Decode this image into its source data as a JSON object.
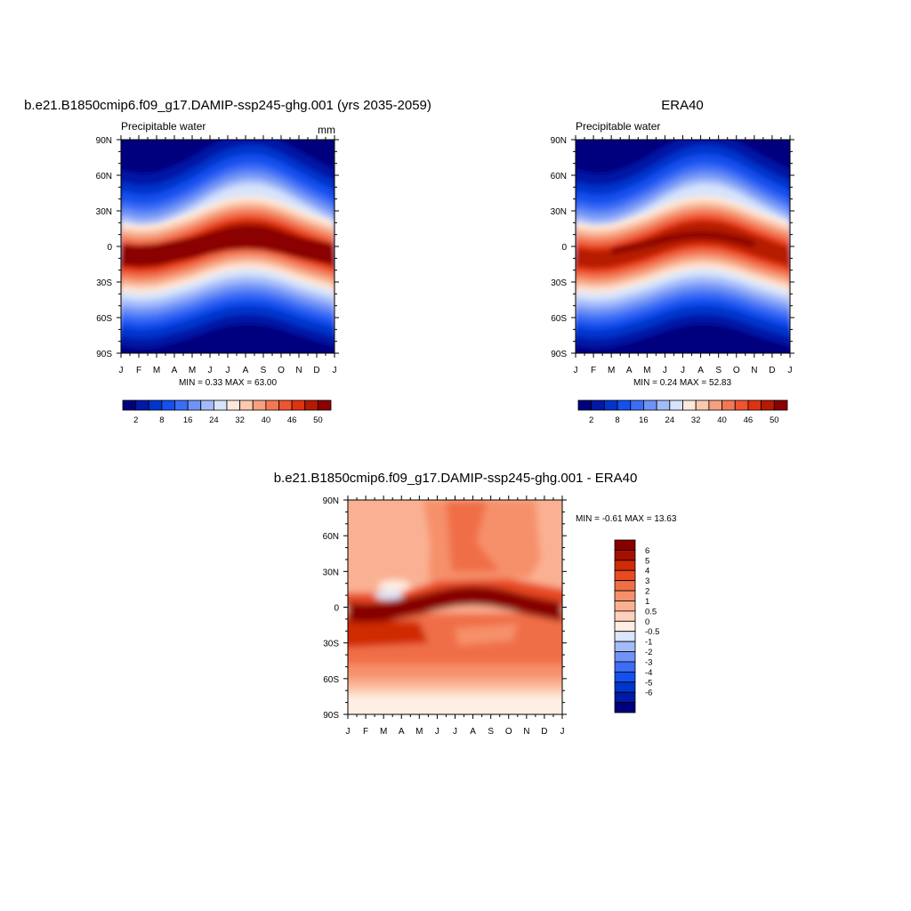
{
  "palettes": {
    "abs": [
      "#00007f",
      "#0019a6",
      "#0035cc",
      "#1450ee",
      "#3c6ef5",
      "#6f93f7",
      "#a4bbf9",
      "#d6e3fb",
      "#fde9dc",
      "#fbc9ae",
      "#f6a07f",
      "#f27855",
      "#ef5430",
      "#de3211",
      "#b51b03",
      "#8b0000"
    ],
    "diff": [
      "#00007f",
      "#0019a6",
      "#0035cc",
      "#1450ee",
      "#3c6ef5",
      "#6f93f7",
      "#a4bbf9",
      "#d9e6fb",
      "#ffeee4",
      "#fdd1bb",
      "#fab193",
      "#f6906b",
      "#f06e46",
      "#e84a22",
      "#d02a06",
      "#a60f00",
      "#860000"
    ]
  },
  "panels": [
    {
      "title": "b.e21.B1850cmip6.f09_g17.DAMIP-ssp245-ghg.001 (yrs 2035-2059)",
      "left_label": "Precipitable water",
      "right_label": "mm",
      "stats": "MIN =   0.33 MAX =  63.00",
      "colorbar_labels": [
        "2",
        "8",
        "16",
        "24",
        "32",
        "40",
        "46",
        "50"
      ]
    },
    {
      "title": "ERA40",
      "left_label": "Precipitable water",
      "right_label": "",
      "stats": "MIN =   0.24 MAX =  52.83",
      "colorbar_labels": [
        "2",
        "8",
        "16",
        "24",
        "32",
        "40",
        "46",
        "50"
      ]
    },
    {
      "title": "b.e21.B1850cmip6.f09_g17.DAMIP-ssp245-ghg.001 - ERA40",
      "left_label": "",
      "right_label": "",
      "stats": "MIN =  -0.61 MAX =  13.63",
      "colorbar_labels": [
        "6",
        "5",
        "4",
        "3",
        "2",
        "1",
        "0.5",
        "0",
        "-0.5",
        "-1",
        "-2",
        "-3",
        "-4",
        "-5",
        "-6"
      ]
    }
  ],
  "axes": {
    "x_tick_labels": [
      "J",
      "F",
      "M",
      "A",
      "M",
      "J",
      "J",
      "A",
      "S",
      "O",
      "N",
      "D",
      "J"
    ],
    "y_tick_labels": [
      "90N",
      "60N",
      "30N",
      "0",
      "30S",
      "60S",
      "90S"
    ]
  },
  "chart_data": [
    {
      "type": "heatmap",
      "title": "b.e21.B1850cmip6.f09_g17.DAMIP-ssp245-ghg.001 (yrs 2035-2059)",
      "variable": "Precipitable water",
      "units": "mm",
      "x": [
        "J",
        "F",
        "M",
        "A",
        "M",
        "J",
        "J",
        "A",
        "S",
        "O",
        "N",
        "D",
        "J"
      ],
      "y": [
        "90N",
        "60N",
        "30N",
        "0",
        "30S",
        "60S",
        "90S"
      ],
      "min": 0.33,
      "max": 63.0,
      "levels": [
        2,
        4,
        6,
        8,
        12,
        16,
        20,
        24,
        28,
        32,
        36,
        40,
        44,
        46,
        48,
        50
      ],
      "itcz_lat_by_month": [
        -6,
        -7,
        -6,
        -3,
        0,
        4,
        7,
        8,
        7,
        4,
        0,
        -3,
        -6
      ],
      "peak_value_approx": 58
    },
    {
      "type": "heatmap",
      "title": "ERA40",
      "variable": "Precipitable water",
      "x": [
        "J",
        "F",
        "M",
        "A",
        "M",
        "J",
        "J",
        "A",
        "S",
        "O",
        "N",
        "D",
        "J"
      ],
      "y": [
        "90N",
        "60N",
        "30N",
        "0",
        "30S",
        "60S",
        "90S"
      ],
      "min": 0.24,
      "max": 52.83,
      "levels": [
        2,
        4,
        6,
        8,
        12,
        16,
        20,
        24,
        28,
        32,
        36,
        40,
        44,
        46,
        48,
        50
      ],
      "itcz_lat_by_month": [
        -6,
        -7,
        -6,
        -3,
        0,
        4,
        7,
        8,
        7,
        4,
        0,
        -3,
        -6
      ],
      "peak_value_approx": 50
    },
    {
      "type": "heatmap",
      "title": "b.e21.B1850cmip6.f09_g17.DAMIP-ssp245-ghg.001 - ERA40",
      "x": [
        "J",
        "F",
        "M",
        "A",
        "M",
        "J",
        "J",
        "A",
        "S",
        "O",
        "N",
        "D",
        "J"
      ],
      "y": [
        "90N",
        "60N",
        "30N",
        "0",
        "30S",
        "60S",
        "90S"
      ],
      "min": -0.61,
      "max": 13.63,
      "levels": [
        -6,
        -5,
        -4,
        -3,
        -2,
        -1,
        -0.5,
        0,
        0.5,
        1,
        2,
        3,
        4,
        5,
        6
      ],
      "difference_approx_by_band": [
        {
          "lat_range": [
            60,
            90
          ],
          "value": 2.5
        },
        {
          "lat_range": [
            20,
            60
          ],
          "value": 2.5
        },
        {
          "lat_range": [
            -10,
            10
          ],
          "value": 7
        },
        {
          "lat_range": [
            -45,
            -10
          ],
          "value": 3
        },
        {
          "lat_range": [
            -70,
            -45
          ],
          "value": 2
        },
        {
          "lat_range": [
            -90,
            -70
          ],
          "value": 0.6
        }
      ]
    }
  ]
}
